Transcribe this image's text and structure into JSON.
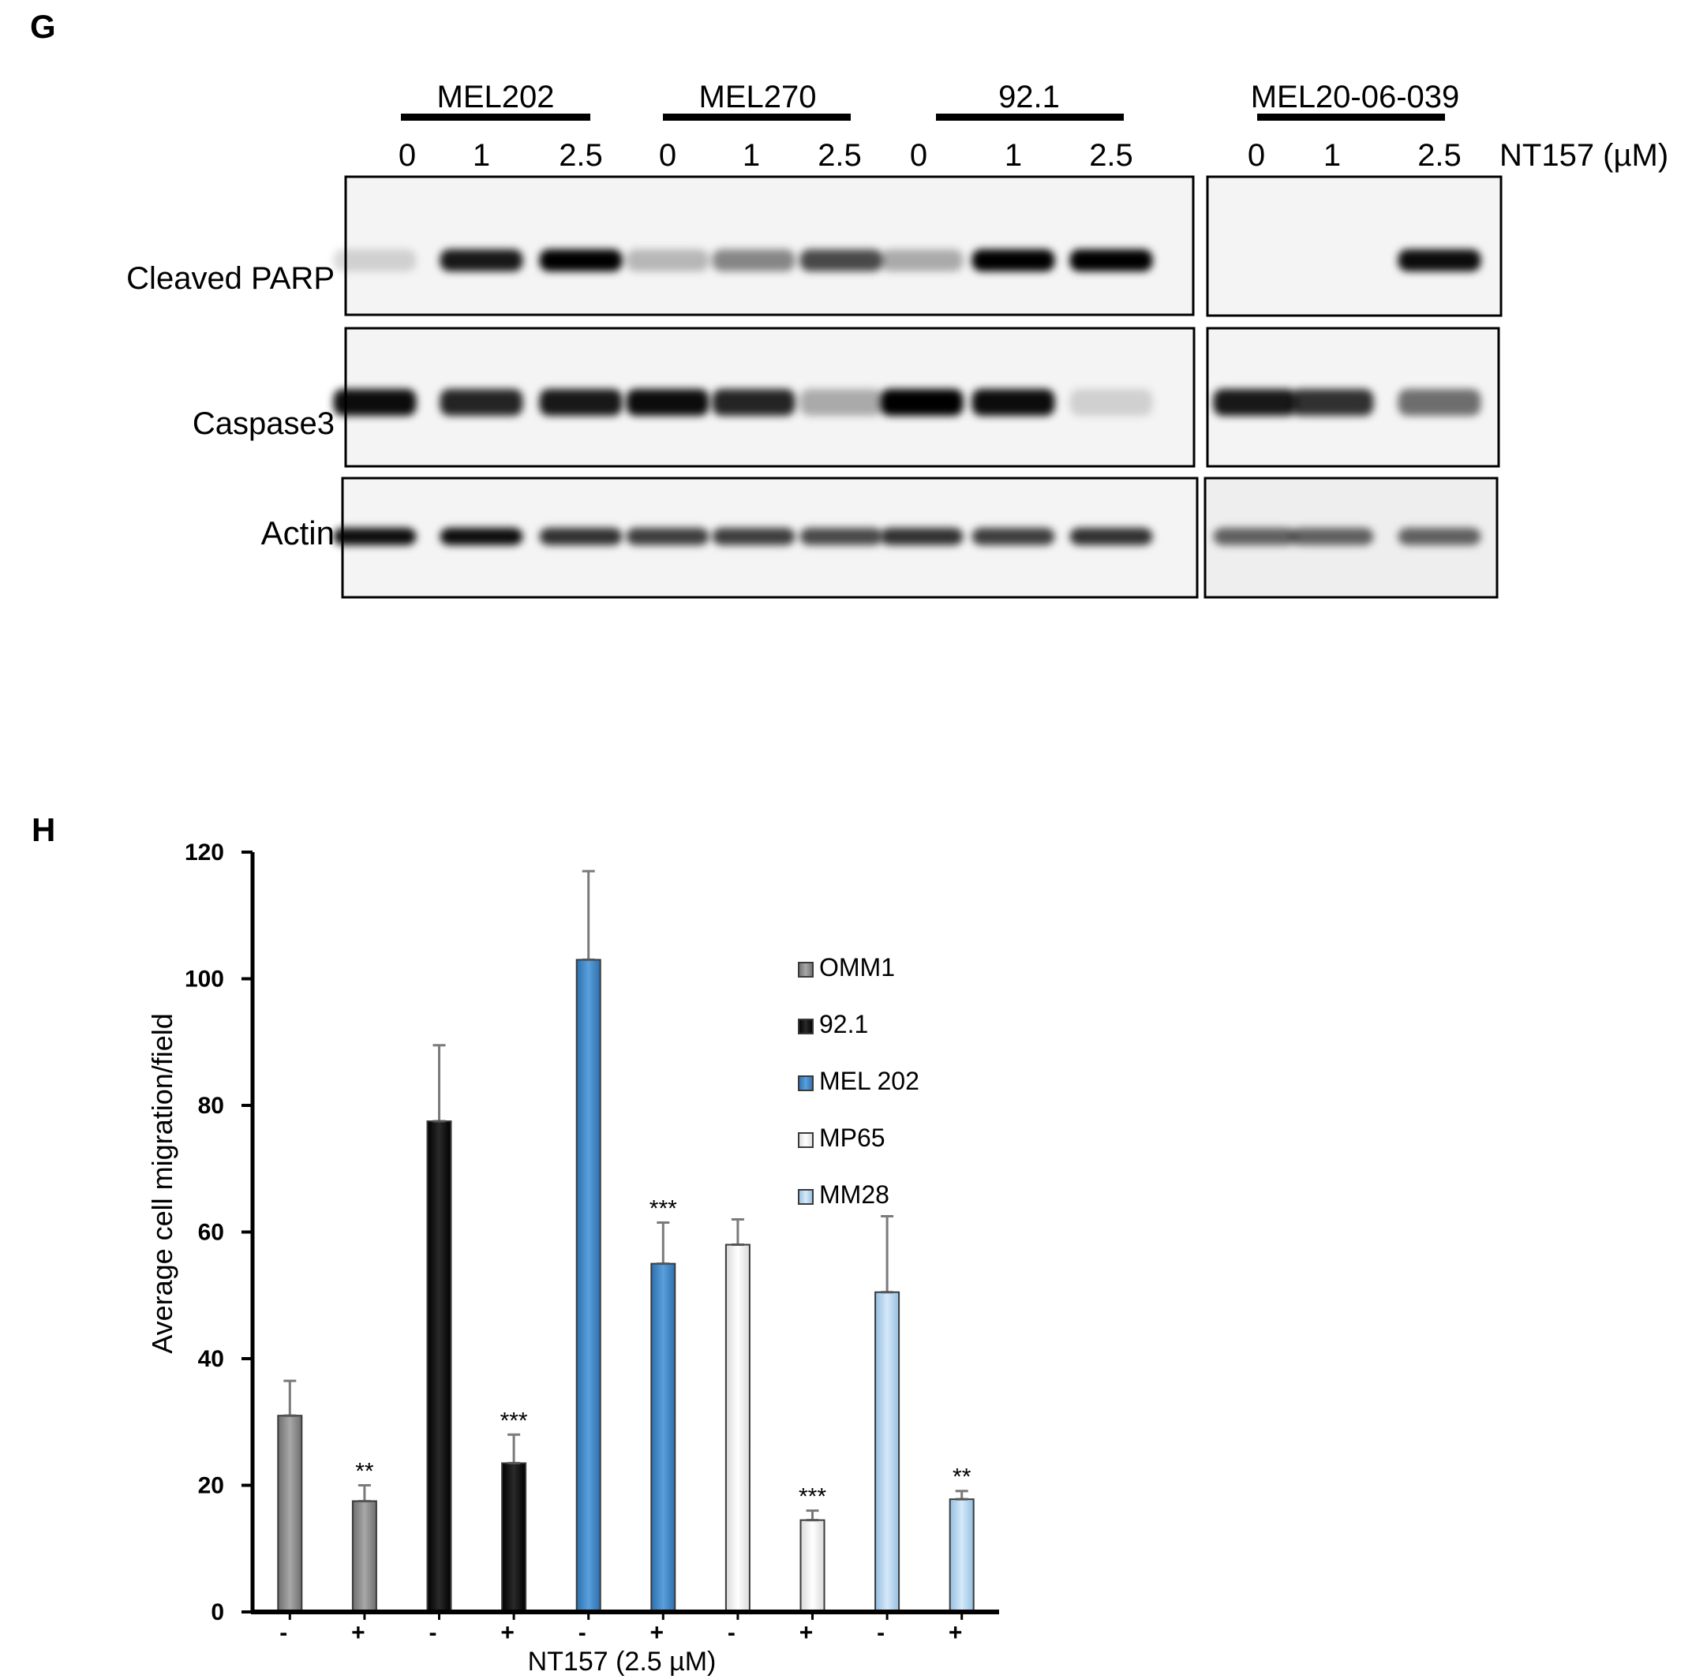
{
  "panel_g": {
    "letter": "G",
    "cell_lines": [
      "MEL202",
      "MEL270",
      "92.1",
      "MEL20-06-039"
    ],
    "doses": [
      "0",
      "1",
      "2.5"
    ],
    "dose_unit": "NT157 (µM)",
    "blots": [
      "Cleaved PARP",
      "Caspase3",
      "Actin"
    ],
    "band_intensity": {
      "Cleaved PARP": [
        0.15,
        0.9,
        1.0,
        0.25,
        0.45,
        0.7,
        0.3,
        1.0,
        1.0,
        0.0,
        0.0,
        0.95
      ],
      "Caspase3": [
        0.95,
        0.85,
        0.9,
        0.95,
        0.85,
        0.3,
        1.0,
        0.95,
        0.15,
        0.9,
        0.8,
        0.55
      ],
      "Actin": [
        0.95,
        0.95,
        0.8,
        0.75,
        0.75,
        0.7,
        0.8,
        0.75,
        0.8,
        0.6,
        0.6,
        0.6
      ]
    }
  },
  "panel_h": {
    "letter": "H",
    "chart_data": {
      "type": "bar",
      "ylabel": "Average cell migration/field",
      "xlabel": "NT157 (2.5 µM)",
      "ylim": [
        0,
        120
      ],
      "yticks": [
        "0",
        "20",
        "40",
        "60",
        "80",
        "100",
        "120"
      ],
      "categories": [
        "-",
        "+",
        "-",
        "+",
        "-",
        "+",
        "-",
        "+",
        "-",
        "+"
      ],
      "values": [
        31,
        17.5,
        77.5,
        23.5,
        103,
        55,
        58,
        14.5,
        50.5,
        17.8
      ],
      "errors": [
        5.5,
        2.5,
        12,
        4.5,
        14,
        6.5,
        4,
        1.5,
        12,
        1.3
      ],
      "significance": [
        "",
        "**",
        "",
        "***",
        "",
        "***",
        "",
        "***",
        "",
        "**"
      ],
      "series": [
        {
          "name": "OMM1",
          "color": "#8c8c8c"
        },
        {
          "name": "92.1",
          "color": "#111111"
        },
        {
          "name": "MEL 202",
          "color": "#3f87c8"
        },
        {
          "name": "MP65",
          "color": "#f0f0f0"
        },
        {
          "name": "MM28",
          "color": "#b8d6ee"
        }
      ],
      "bar_series": [
        0,
        0,
        1,
        1,
        2,
        2,
        3,
        3,
        4,
        4
      ],
      "legend_position": "right"
    }
  }
}
